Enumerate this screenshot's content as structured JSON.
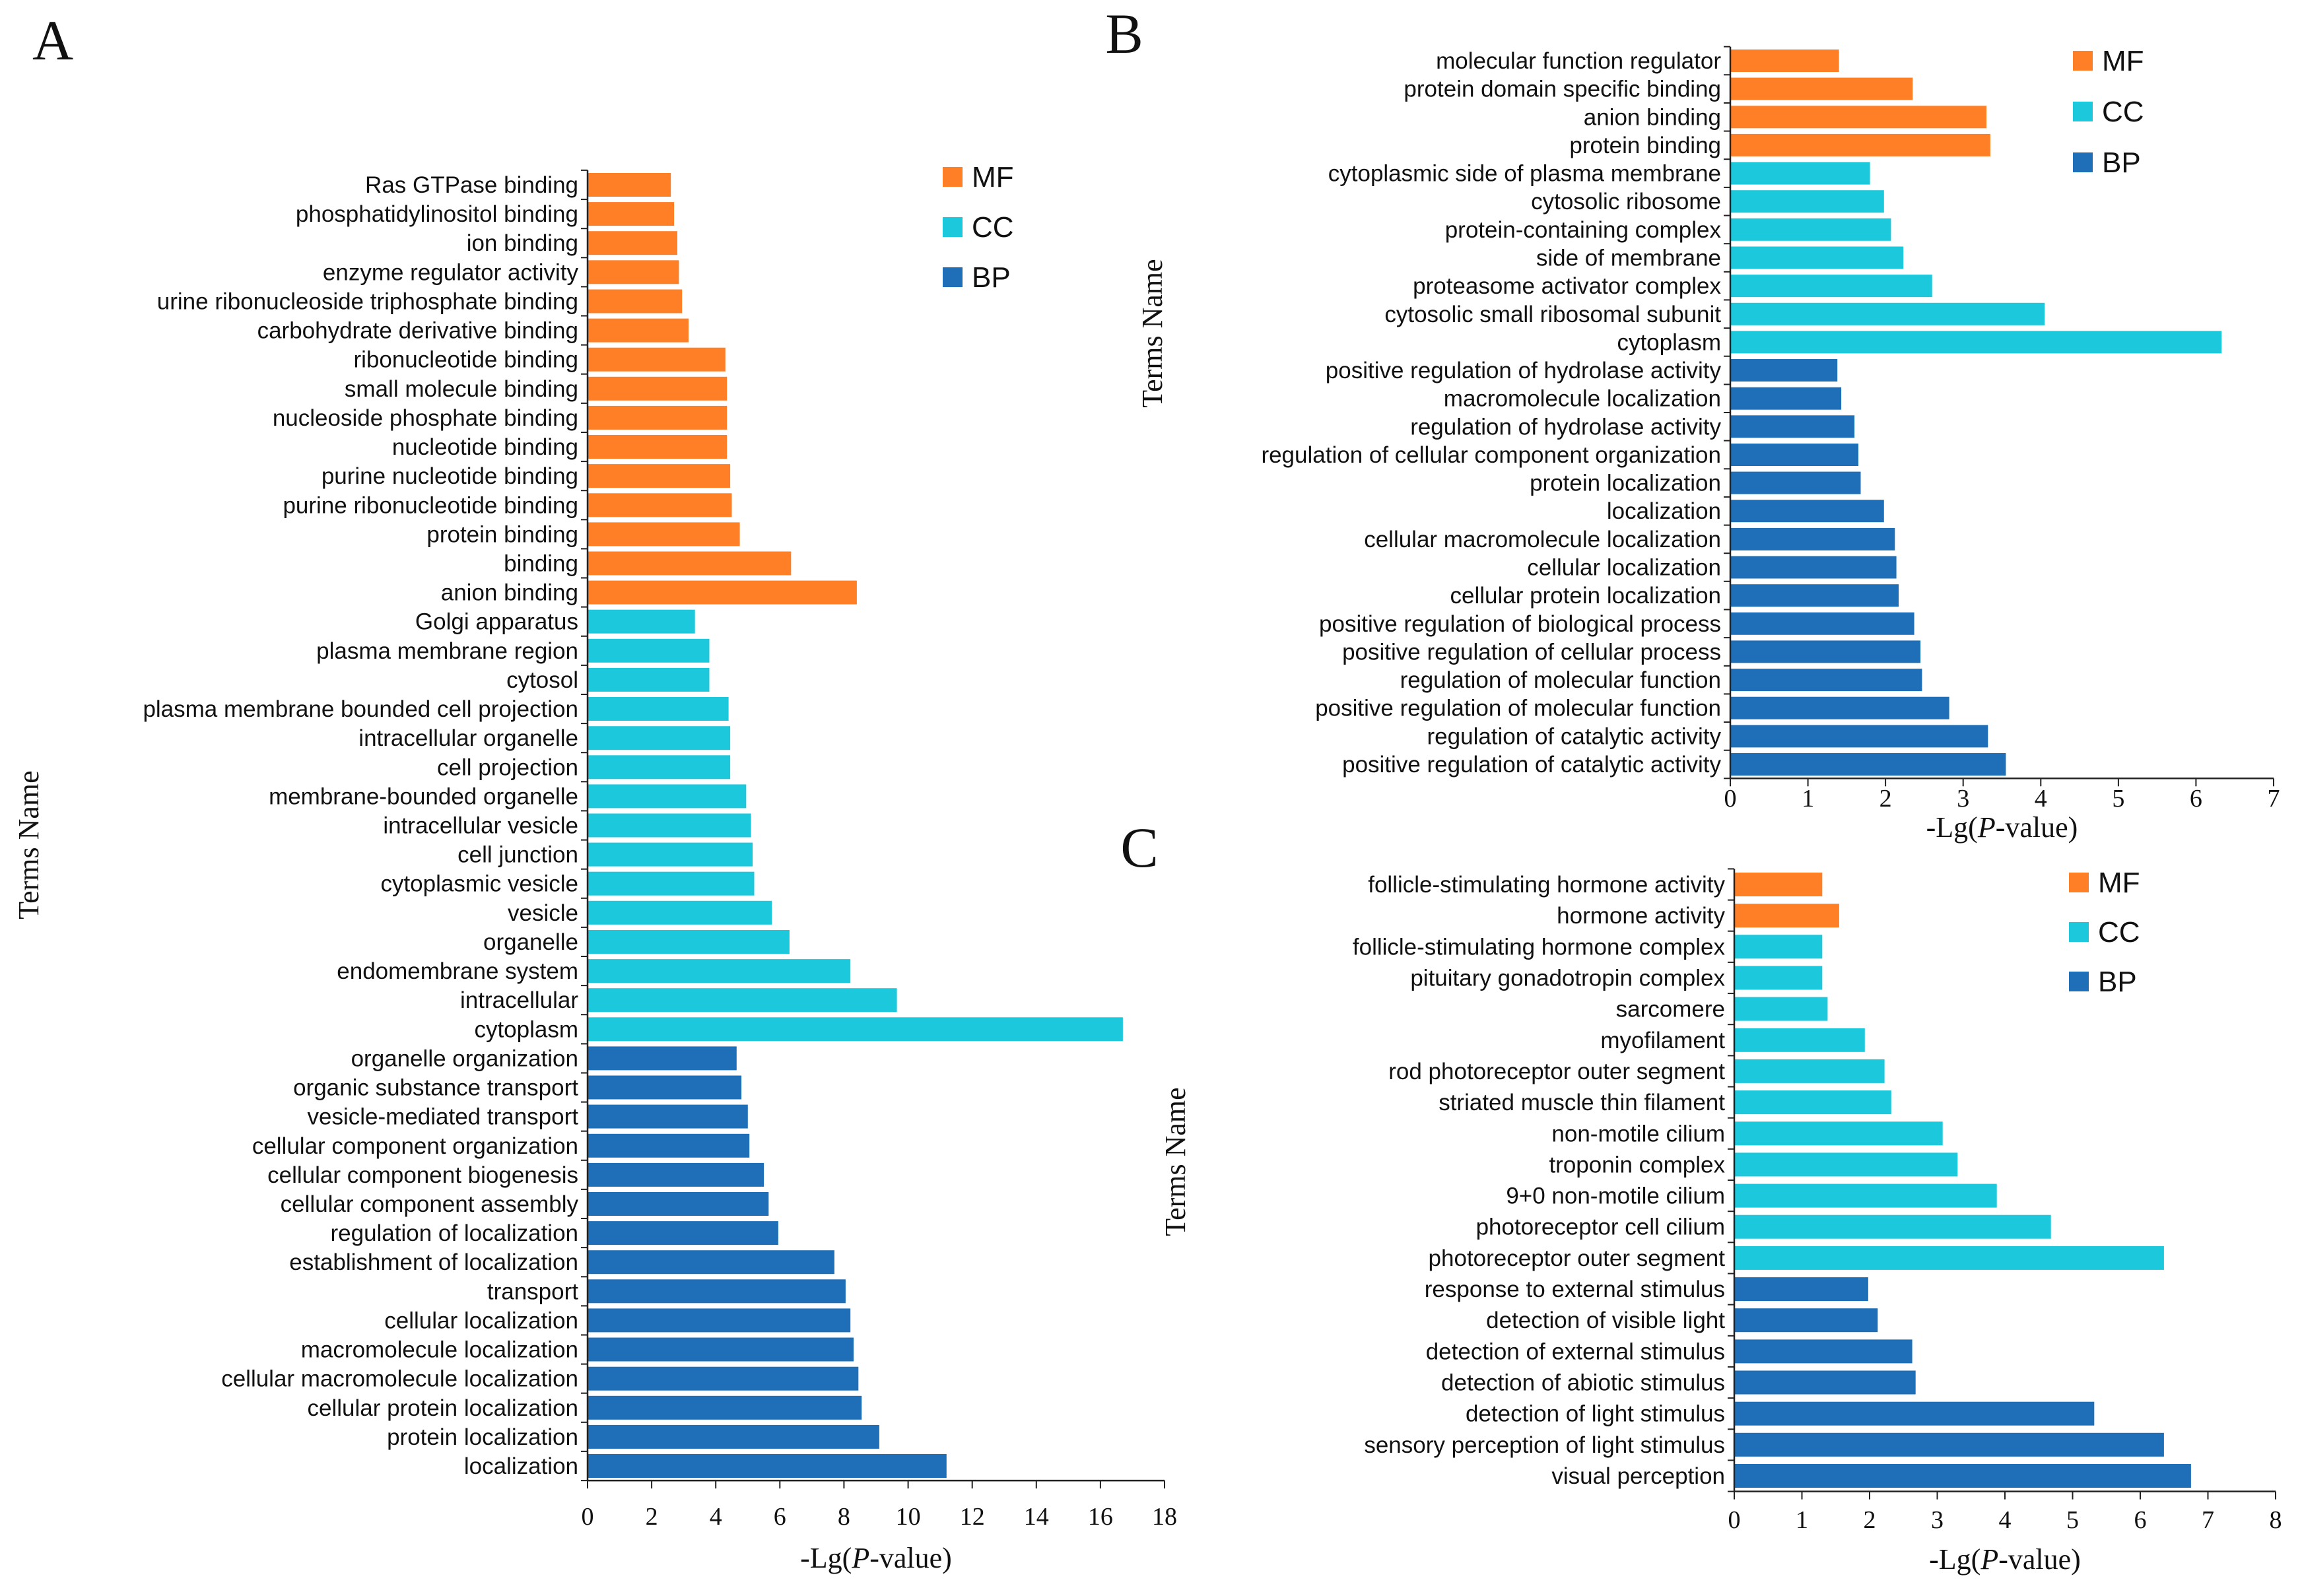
{
  "figure": {
    "colors": {
      "MF": "#FF7F27",
      "CC": "#1BC8DC",
      "BP": "#1E6FB8"
    }
  },
  "chart_data": [
    {
      "panel": "A",
      "type": "bar",
      "orientation": "horizontal",
      "xlabel": {
        "prefix": "-Lg(",
        "italic": "P",
        "suffix": "-value)"
      },
      "ylabel": "Terms Name",
      "xlim": [
        0,
        18
      ],
      "xticks": [
        0,
        2,
        4,
        6,
        8,
        10,
        12,
        14,
        16,
        18
      ],
      "legend": [
        "MF",
        "CC",
        "BP"
      ],
      "legend_position": "top-right",
      "categories": [
        "Ras GTPase binding",
        "phosphatidylinositol binding",
        "ion binding",
        "enzyme regulator activity",
        "urine ribonucleoside triphosphate binding",
        "carbohydrate derivative binding",
        "ribonucleotide binding",
        "small molecule binding",
        "nucleoside phosphate binding",
        "nucleotide binding",
        "purine nucleotide binding",
        "purine ribonucleotide binding",
        "protein binding",
        "binding",
        "anion binding",
        "Golgi apparatus",
        "plasma membrane region",
        "cytosol",
        "plasma membrane bounded cell projection",
        "intracellular organelle",
        "cell projection",
        "membrane-bounded organelle",
        "intracellular vesicle",
        "cell junction",
        "cytoplasmic vesicle",
        "vesicle",
        "organelle",
        "endomembrane system",
        "intracellular",
        "cytoplasm",
        "organelle organization",
        "organic substance transport",
        "vesicle-mediated transport",
        "cellular component organization",
        "cellular component biogenesis",
        "cellular component assembly",
        "regulation of localization",
        "establishment of localization",
        "transport",
        "cellular localization",
        "macromolecule localization",
        "cellular macromolecule localization",
        "cellular protein localization",
        "protein localization",
        "localization"
      ],
      "values": [
        2.6,
        2.7,
        2.8,
        2.85,
        2.95,
        3.15,
        4.3,
        4.35,
        4.35,
        4.35,
        4.45,
        4.5,
        4.75,
        6.35,
        8.4,
        3.35,
        3.8,
        3.8,
        4.4,
        4.45,
        4.45,
        4.95,
        5.1,
        5.15,
        5.2,
        5.75,
        6.3,
        8.2,
        9.65,
        16.7,
        4.65,
        4.8,
        5.0,
        5.05,
        5.5,
        5.65,
        5.95,
        7.7,
        8.05,
        8.2,
        8.3,
        8.45,
        8.55,
        9.1,
        11.2
      ],
      "groups": [
        "MF",
        "MF",
        "MF",
        "MF",
        "MF",
        "MF",
        "MF",
        "MF",
        "MF",
        "MF",
        "MF",
        "MF",
        "MF",
        "MF",
        "MF",
        "CC",
        "CC",
        "CC",
        "CC",
        "CC",
        "CC",
        "CC",
        "CC",
        "CC",
        "CC",
        "CC",
        "CC",
        "CC",
        "CC",
        "CC",
        "BP",
        "BP",
        "BP",
        "BP",
        "BP",
        "BP",
        "BP",
        "BP",
        "BP",
        "BP",
        "BP",
        "BP",
        "BP",
        "BP",
        "BP"
      ]
    },
    {
      "panel": "B",
      "type": "bar",
      "orientation": "horizontal",
      "xlabel": {
        "prefix": "-Lg(",
        "italic": "P",
        "suffix": "-value)"
      },
      "ylabel": "Terms Name",
      "xlim": [
        0,
        7
      ],
      "xticks": [
        0,
        1,
        2,
        3,
        4,
        5,
        6,
        7
      ],
      "legend": [
        "MF",
        "CC",
        "BP"
      ],
      "legend_position": "top-right",
      "categories": [
        "molecular function regulator",
        "protein domain specific binding",
        "anion binding",
        "protein binding",
        "cytoplasmic side of plasma membrane",
        "cytosolic ribosome",
        "protein-containing complex",
        "side of membrane",
        "proteasome activator complex",
        "cytosolic small ribosomal subunit",
        "cytoplasm",
        "positive regulation of hydrolase activity",
        "macromolecule localization",
        "regulation of hydrolase activity",
        "regulation of cellular component organization",
        "protein localization",
        "localization",
        "cellular macromolecule localization",
        "cellular localization",
        "cellular protein localization",
        "positive regulation of biological process",
        "positive regulation of cellular process",
        "regulation of molecular function",
        "positive regulation of molecular function",
        "regulation of catalytic activity",
        "positive regulation of catalytic activity"
      ],
      "values": [
        1.4,
        2.35,
        3.3,
        3.35,
        1.8,
        1.98,
        2.07,
        2.23,
        2.6,
        4.05,
        6.33,
        1.38,
        1.43,
        1.6,
        1.65,
        1.68,
        1.98,
        2.12,
        2.14,
        2.17,
        2.37,
        2.45,
        2.47,
        2.82,
        3.32,
        3.55
      ],
      "groups": [
        "MF",
        "MF",
        "MF",
        "MF",
        "CC",
        "CC",
        "CC",
        "CC",
        "CC",
        "CC",
        "CC",
        "BP",
        "BP",
        "BP",
        "BP",
        "BP",
        "BP",
        "BP",
        "BP",
        "BP",
        "BP",
        "BP",
        "BP",
        "BP",
        "BP",
        "BP"
      ]
    },
    {
      "panel": "C",
      "type": "bar",
      "orientation": "horizontal",
      "xlabel": {
        "prefix": "-Lg(",
        "italic": "P",
        "suffix": "-value)"
      },
      "ylabel": "Terms Name",
      "xlim": [
        0,
        8
      ],
      "xticks": [
        0,
        1,
        2,
        3,
        4,
        5,
        6,
        7,
        8
      ],
      "legend": [
        "MF",
        "CC",
        "BP"
      ],
      "legend_position": "top-right",
      "categories": [
        "follicle-stimulating hormone activity",
        "hormone activity",
        "follicle-stimulating hormone complex",
        "pituitary gonadotropin complex",
        "sarcomere",
        "myofilament",
        "rod photoreceptor outer segment",
        "striated muscle thin filament",
        "non-motile cilium",
        "troponin complex",
        "9+0 non-motile cilium",
        "photoreceptor cell cilium",
        "photoreceptor outer segment",
        "response to external stimulus",
        "detection of visible light",
        "detection of external stimulus",
        "detection of abiotic stimulus",
        "detection of light stimulus",
        "sensory perception of light stimulus",
        "visual perception"
      ],
      "values": [
        1.3,
        1.55,
        1.3,
        1.3,
        1.38,
        1.93,
        2.22,
        2.32,
        3.08,
        3.3,
        3.88,
        4.68,
        6.35,
        1.98,
        2.12,
        2.63,
        2.68,
        5.32,
        6.35,
        6.75
      ],
      "groups": [
        "MF",
        "MF",
        "CC",
        "CC",
        "CC",
        "CC",
        "CC",
        "CC",
        "CC",
        "CC",
        "CC",
        "CC",
        "CC",
        "BP",
        "BP",
        "BP",
        "BP",
        "BP",
        "BP",
        "BP"
      ]
    }
  ]
}
